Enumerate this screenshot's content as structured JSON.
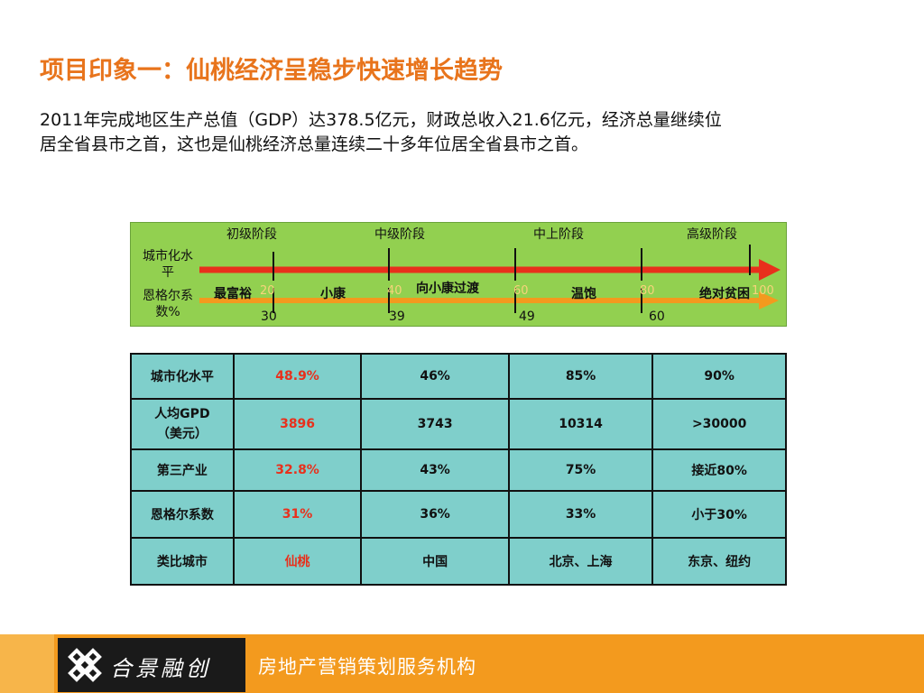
{
  "title": "项目印象一：仙桃经济呈稳步快速增长趋势",
  "intro": {
    "line1": "2011年完成地区生产总值（GDP）达378.5亿元，财政总收入21.6亿元，经济总量继续位",
    "line2": "居全省县市之首，这也是仙桃经济总量连续二十多年位居全省县市之首。"
  },
  "stages": {
    "labels": [
      "初级阶段",
      "中级阶段",
      "中上阶段",
      "高级阶段"
    ],
    "row_urban": "城市化水平",
    "row_engel": "恩格尔系数%",
    "engel_levels": [
      "最富裕",
      "小康",
      "向小康过渡",
      "温饱",
      "绝对贫困"
    ],
    "urban_ticks": [
      "30",
      "39",
      "49",
      "60"
    ],
    "engel_ticks": [
      "20",
      "40",
      "60",
      "80",
      "100"
    ]
  },
  "table": {
    "rows": [
      {
        "label": "城市化水平",
        "values": [
          "48.9%",
          "46%",
          "85%",
          "90%"
        ]
      },
      {
        "label": "人均GPD（美元）",
        "values": [
          "3896",
          "3743",
          "10314",
          ">30000"
        ]
      },
      {
        "label": "第三产业",
        "values": [
          "32.8%",
          "43%",
          "75%",
          "接近80%"
        ]
      },
      {
        "label": "恩格尔系数",
        "values": [
          "31%",
          "36%",
          "33%",
          "小于30%"
        ]
      },
      {
        "label": "类比城市",
        "values": [
          "仙桃",
          "中国",
          "北京、上海",
          "东京、纽约"
        ]
      }
    ]
  },
  "footer": {
    "brand": "合景融创",
    "slogan": "房地产营销策划服务机构"
  },
  "colors": {
    "title": "#e8741c",
    "highlight": "#e8301c",
    "stage_bg": "#92d050",
    "table_bg": "#7fcfcb",
    "footer_bg": "#f39a1e"
  }
}
